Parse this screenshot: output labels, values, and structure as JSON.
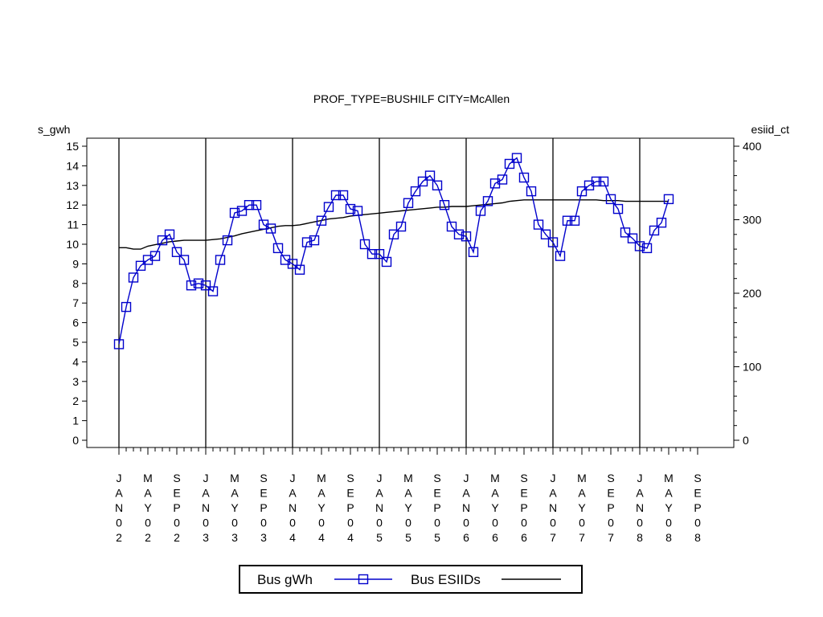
{
  "chart_data": {
    "type": "line",
    "title": "PROF_TYPE=BUSHILF CITY=McAllen",
    "ylabel_left": "s_gwh",
    "ylabel_right": "esiid_ct",
    "xlabel": "",
    "ylim_left": [
      0,
      15
    ],
    "ylim_right": [
      0,
      400
    ],
    "yticks_left": [
      "0",
      "1",
      "2",
      "3",
      "4",
      "5",
      "6",
      "7",
      "8",
      "9",
      "10",
      "11",
      "12",
      "13",
      "14",
      "15"
    ],
    "yticks_right": [
      "0",
      "100",
      "200",
      "300",
      "400"
    ],
    "x_tick_labels": [
      "JAN02",
      "MAY02",
      "SEP02",
      "JAN03",
      "MAY03",
      "SEP03",
      "JAN04",
      "MAY04",
      "SEP04",
      "JAN05",
      "MAY05",
      "SEP05",
      "JAN06",
      "MAY06",
      "SEP06",
      "JAN07",
      "MAY07",
      "SEP07",
      "JAN08",
      "MAY08",
      "SEP08"
    ],
    "year_dividers": [
      "JAN02",
      "JAN03",
      "JAN04",
      "JAN05",
      "JAN06",
      "JAN07",
      "JAN08"
    ],
    "x": [
      "2002-01",
      "2002-02",
      "2002-03",
      "2002-04",
      "2002-05",
      "2002-06",
      "2002-07",
      "2002-08",
      "2002-09",
      "2002-10",
      "2002-11",
      "2002-12",
      "2003-01",
      "2003-02",
      "2003-03",
      "2003-04",
      "2003-05",
      "2003-06",
      "2003-07",
      "2003-08",
      "2003-09",
      "2003-10",
      "2003-11",
      "2003-12",
      "2004-01",
      "2004-02",
      "2004-03",
      "2004-04",
      "2004-05",
      "2004-06",
      "2004-07",
      "2004-08",
      "2004-09",
      "2004-10",
      "2004-11",
      "2004-12",
      "2005-01",
      "2005-02",
      "2005-03",
      "2005-04",
      "2005-05",
      "2005-06",
      "2005-07",
      "2005-08",
      "2005-09",
      "2005-10",
      "2005-11",
      "2005-12",
      "2006-01",
      "2006-02",
      "2006-03",
      "2006-04",
      "2006-05",
      "2006-06",
      "2006-07",
      "2006-08",
      "2006-09",
      "2006-10",
      "2006-11",
      "2006-12",
      "2007-01",
      "2007-02",
      "2007-03",
      "2007-04",
      "2007-05",
      "2007-06",
      "2007-07",
      "2007-08",
      "2007-09",
      "2007-10",
      "2007-11",
      "2007-12",
      "2008-01",
      "2008-02",
      "2008-03",
      "2008-04",
      "2008-05"
    ],
    "series": [
      {
        "name": "Bus gWh",
        "axis": "left",
        "color": "#0000cc",
        "marker": "square",
        "values": [
          4.9,
          6.8,
          8.3,
          8.9,
          9.2,
          9.4,
          10.2,
          10.5,
          9.6,
          9.2,
          7.9,
          8.0,
          7.9,
          7.6,
          9.2,
          10.2,
          11.6,
          11.7,
          12.0,
          12.0,
          11.0,
          10.8,
          9.8,
          9.2,
          9.0,
          8.7,
          10.1,
          10.2,
          11.2,
          11.9,
          12.5,
          12.5,
          11.8,
          11.7,
          10.0,
          9.5,
          9.5,
          9.1,
          10.5,
          10.9,
          12.1,
          12.7,
          13.2,
          13.5,
          13.0,
          12.0,
          10.9,
          10.5,
          10.4,
          9.6,
          11.7,
          12.2,
          13.1,
          13.3,
          14.1,
          14.4,
          13.4,
          12.7,
          11.0,
          10.5,
          10.1,
          9.4,
          11.2,
          11.2,
          12.7,
          13.0,
          13.2,
          13.2,
          12.3,
          11.8,
          10.6,
          10.3,
          9.9,
          9.8,
          10.7,
          11.1,
          12.3
        ]
      },
      {
        "name": "Bus ESIIDs",
        "axis": "right",
        "color": "#000000",
        "marker": "none",
        "values": [
          262,
          262,
          260,
          260,
          264,
          266,
          268,
          270,
          271,
          272,
          272,
          272,
          272,
          273,
          274,
          276,
          278,
          281,
          283,
          285,
          287,
          289,
          291,
          292,
          292,
          293,
          295,
          297,
          299,
          301,
          302,
          303,
          305,
          306,
          307,
          308,
          309,
          310,
          311,
          312,
          313,
          314,
          315,
          316,
          317,
          317,
          318,
          318,
          318,
          319,
          320,
          321,
          322,
          323,
          325,
          326,
          327,
          327,
          327,
          327,
          327,
          327,
          327,
          327,
          327,
          327,
          327,
          326,
          326,
          326,
          325,
          325,
          325,
          325,
          325,
          325,
          325
        ]
      }
    ],
    "grid": false,
    "legend_position": "bottom"
  }
}
